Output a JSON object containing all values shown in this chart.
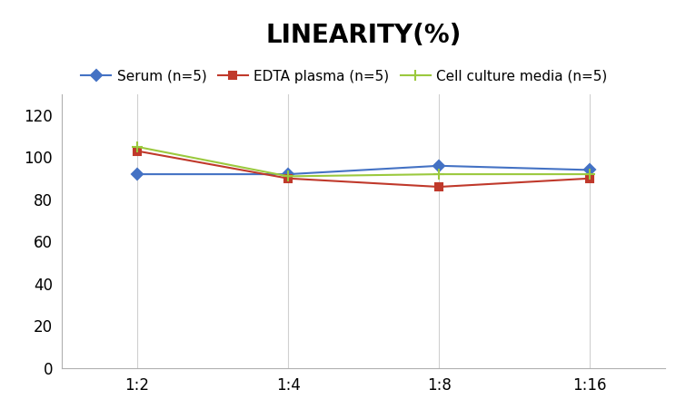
{
  "title": "LINEARITY(%)",
  "x_labels": [
    "1:2",
    "1:4",
    "1:8",
    "1:16"
  ],
  "x_positions": [
    0,
    1,
    2,
    3
  ],
  "series": [
    {
      "label": "Serum (n=5)",
      "values": [
        92,
        92,
        96,
        94
      ],
      "color": "#4472c4",
      "marker": "D",
      "marker_size": 6
    },
    {
      "label": "EDTA plasma (n=5)",
      "values": [
        103,
        90,
        86,
        90
      ],
      "color": "#c0392b",
      "marker": "s",
      "marker_size": 6
    },
    {
      "label": "Cell culture media (n=5)",
      "values": [
        105,
        91,
        92,
        92
      ],
      "color": "#9bc93e",
      "marker": "+",
      "marker_size": 9
    }
  ],
  "ylim": [
    0,
    130
  ],
  "yticks": [
    0,
    20,
    40,
    60,
    80,
    100,
    120
  ],
  "title_fontsize": 20,
  "legend_fontsize": 11,
  "tick_fontsize": 12,
  "background_color": "#ffffff",
  "grid_color": "#d0d0d0"
}
